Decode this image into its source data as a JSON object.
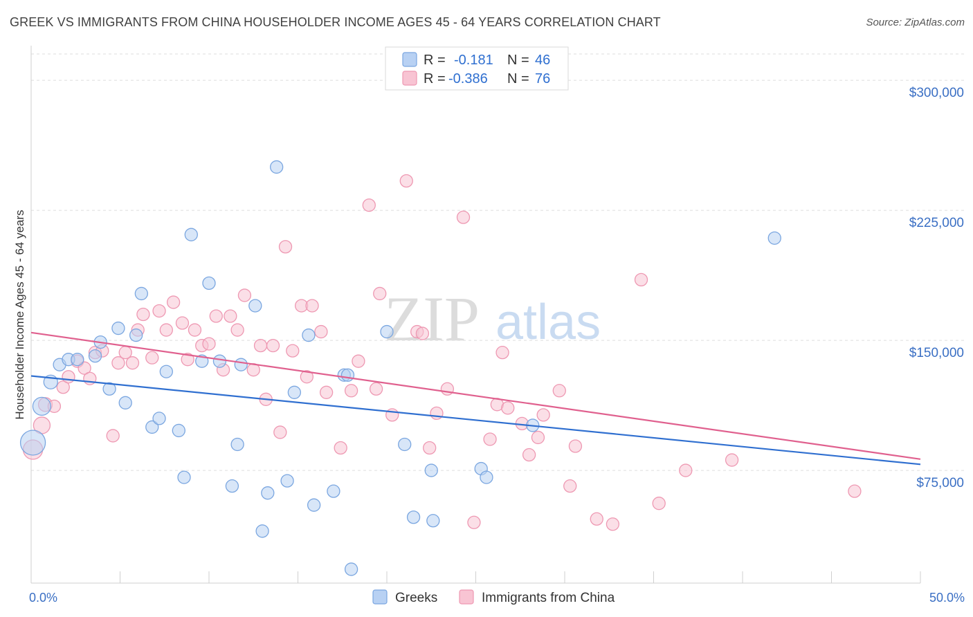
{
  "title": "GREEK VS IMMIGRANTS FROM CHINA HOUSEHOLDER INCOME AGES 45 - 64 YEARS CORRELATION CHART",
  "source": "Source: ZipAtlas.com",
  "watermark": {
    "zip": "ZIP",
    "atlas": "atlas"
  },
  "colors": {
    "blue_fill": "#b8d1f3",
    "blue_stroke": "#7aa6e0",
    "blue_line": "#2f6fd0",
    "pink_fill": "#f8c4d3",
    "pink_stroke": "#ee98b2",
    "pink_line": "#e0608e",
    "axis_text": "#3a6fc4"
  },
  "chart_data": {
    "type": "scatter",
    "ylabel": "Householder Income Ages 45 - 64 years",
    "xlim": [
      0,
      50
    ],
    "ylim": [
      10000,
      320000
    ],
    "x_tick_labels": [
      {
        "value": 0,
        "label": "0.0%"
      },
      {
        "value": 50,
        "label": "50.0%"
      }
    ],
    "y_ticks": [
      {
        "value": 75000,
        "label": "$75,000"
      },
      {
        "value": 150000,
        "label": "$150,000"
      },
      {
        "value": 225000,
        "label": "$225,000"
      },
      {
        "value": 300000,
        "label": "$300,000"
      }
    ],
    "legend_stats": [
      {
        "r_label": "R =",
        "r_value": "-0.181",
        "n_label": "N =",
        "n_value": "46"
      },
      {
        "r_label": "R =",
        "r_value": "-0.386",
        "n_label": "N =",
        "n_value": "76"
      }
    ],
    "series": [
      {
        "name": "Greeks",
        "trend": {
          "x": [
            0,
            50
          ],
          "y": [
            129500,
            78500
          ]
        },
        "points": [
          [
            0.1,
            91000,
            18
          ],
          [
            0.6,
            112000,
            13
          ],
          [
            1.1,
            126000,
            10
          ],
          [
            1.6,
            136000,
            9
          ],
          [
            2.1,
            139000,
            9
          ],
          [
            2.6,
            139000,
            9
          ],
          [
            3.6,
            141000,
            9
          ],
          [
            3.9,
            149000,
            9
          ],
          [
            4.4,
            122000,
            9
          ],
          [
            4.9,
            157000,
            9
          ],
          [
            5.3,
            114000,
            9
          ],
          [
            5.9,
            153000,
            9
          ],
          [
            6.2,
            177000,
            9
          ],
          [
            6.8,
            100000,
            9
          ],
          [
            7.2,
            105000,
            9
          ],
          [
            7.6,
            132000,
            9
          ],
          [
            8.3,
            98000,
            9
          ],
          [
            8.6,
            71000,
            9
          ],
          [
            9.0,
            211000,
            9
          ],
          [
            9.6,
            138000,
            9
          ],
          [
            10.0,
            183000,
            9
          ],
          [
            10.6,
            138000,
            9
          ],
          [
            11.3,
            66000,
            9
          ],
          [
            11.6,
            90000,
            9
          ],
          [
            11.8,
            136000,
            9
          ],
          [
            12.6,
            170000,
            9
          ],
          [
            13.0,
            40000,
            9
          ],
          [
            13.3,
            62000,
            9
          ],
          [
            13.8,
            250000,
            9
          ],
          [
            14.4,
            69000,
            9
          ],
          [
            14.8,
            120000,
            9
          ],
          [
            15.9,
            55000,
            9
          ],
          [
            15.6,
            153000,
            9
          ],
          [
            17.0,
            63000,
            9
          ],
          [
            17.6,
            130000,
            9
          ],
          [
            18.0,
            18000,
            9
          ],
          [
            20.0,
            155000,
            9
          ],
          [
            21.0,
            90000,
            9
          ],
          [
            21.5,
            48000,
            9
          ],
          [
            22.5,
            75000,
            9
          ],
          [
            22.6,
            46000,
            9
          ],
          [
            25.3,
            76000,
            9
          ],
          [
            25.6,
            71000,
            9
          ],
          [
            28.2,
            101000,
            9
          ],
          [
            41.8,
            209000,
            9
          ],
          [
            17.8,
            130000,
            9
          ]
        ]
      },
      {
        "name": "Immigrants from China",
        "trend": {
          "x": [
            0,
            50
          ],
          "y": [
            154500,
            81500
          ]
        },
        "points": [
          [
            0.1,
            87000,
            14
          ],
          [
            0.6,
            101000,
            12
          ],
          [
            0.8,
            113000,
            10
          ],
          [
            1.3,
            112000,
            9
          ],
          [
            1.8,
            123000,
            9
          ],
          [
            2.1,
            129000,
            9
          ],
          [
            2.6,
            138000,
            9
          ],
          [
            3.0,
            134000,
            9
          ],
          [
            3.3,
            128000,
            9
          ],
          [
            3.6,
            143000,
            9
          ],
          [
            4.0,
            144000,
            9
          ],
          [
            4.6,
            95000,
            9
          ],
          [
            4.9,
            137000,
            9
          ],
          [
            5.3,
            143000,
            9
          ],
          [
            5.7,
            137000,
            9
          ],
          [
            6.0,
            156000,
            9
          ],
          [
            6.3,
            165000,
            9
          ],
          [
            6.8,
            140000,
            9
          ],
          [
            7.2,
            167000,
            9
          ],
          [
            7.6,
            156000,
            9
          ],
          [
            8.0,
            172000,
            9
          ],
          [
            8.5,
            160000,
            9
          ],
          [
            8.8,
            139000,
            9
          ],
          [
            9.2,
            156000,
            9
          ],
          [
            9.6,
            147000,
            9
          ],
          [
            10.0,
            148000,
            9
          ],
          [
            10.4,
            164000,
            9
          ],
          [
            10.8,
            133000,
            9
          ],
          [
            11.2,
            164000,
            9
          ],
          [
            11.6,
            156000,
            9
          ],
          [
            12.0,
            176000,
            9
          ],
          [
            12.5,
            133000,
            9
          ],
          [
            12.9,
            147000,
            9
          ],
          [
            13.2,
            116000,
            9
          ],
          [
            13.6,
            147000,
            9
          ],
          [
            14.0,
            97000,
            9
          ],
          [
            14.3,
            204000,
            9
          ],
          [
            14.7,
            144000,
            9
          ],
          [
            15.2,
            170000,
            9
          ],
          [
            15.5,
            129000,
            9
          ],
          [
            15.8,
            170000,
            9
          ],
          [
            16.3,
            155000,
            9
          ],
          [
            16.6,
            120000,
            9
          ],
          [
            17.4,
            88000,
            9
          ],
          [
            18.0,
            121000,
            9
          ],
          [
            18.4,
            138000,
            9
          ],
          [
            19.0,
            228000,
            9
          ],
          [
            19.4,
            122000,
            9
          ],
          [
            19.6,
            177000,
            9
          ],
          [
            20.3,
            107000,
            9
          ],
          [
            21.1,
            242000,
            9
          ],
          [
            21.7,
            155000,
            9
          ],
          [
            22.0,
            154000,
            9
          ],
          [
            22.4,
            88000,
            9
          ],
          [
            22.8,
            108000,
            9
          ],
          [
            23.4,
            122000,
            9
          ],
          [
            24.3,
            221000,
            9
          ],
          [
            24.9,
            45000,
            9
          ],
          [
            25.8,
            93000,
            9
          ],
          [
            26.2,
            113000,
            9
          ],
          [
            26.5,
            143000,
            9
          ],
          [
            26.8,
            111000,
            9
          ],
          [
            27.6,
            102000,
            9
          ],
          [
            28.0,
            84000,
            9
          ],
          [
            28.5,
            94000,
            9
          ],
          [
            28.8,
            107000,
            9
          ],
          [
            29.7,
            121000,
            9
          ],
          [
            30.3,
            66000,
            9
          ],
          [
            30.6,
            89000,
            9
          ],
          [
            31.8,
            47000,
            9
          ],
          [
            32.7,
            44000,
            9
          ],
          [
            34.3,
            185000,
            9
          ],
          [
            35.3,
            56000,
            9
          ],
          [
            36.8,
            75000,
            9
          ],
          [
            39.4,
            81000,
            9
          ],
          [
            46.3,
            63000,
            9
          ]
        ]
      }
    ]
  }
}
